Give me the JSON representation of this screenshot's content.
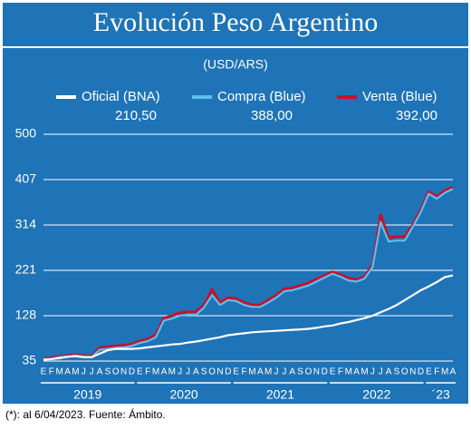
{
  "chart_data": {
    "type": "line",
    "title": "Evolución Peso Argentino",
    "subtitle": "(USD/ARS)",
    "footnote": "(*): al  6/04/2023. Fuente: Ámbito.",
    "categories": [
      "E",
      "F",
      "M",
      "A",
      "M",
      "J",
      "J",
      "A",
      "S",
      "O",
      "N",
      "D",
      "E",
      "F",
      "M",
      "A",
      "M",
      "J",
      "J",
      "A",
      "S",
      "O",
      "N",
      "D",
      "E",
      "F",
      "M",
      "A",
      "M",
      "J",
      "J",
      "A",
      "S",
      "O",
      "N",
      "D",
      "E",
      "F",
      "M",
      "A",
      "M",
      "J",
      "J",
      "A",
      "S",
      "O",
      "N",
      "D",
      "E",
      "F",
      "M",
      "A"
    ],
    "years": [
      "2019",
      "2020",
      "2021",
      "2022",
      "´23"
    ],
    "ylim": [
      35,
      500
    ],
    "yticks": [
      35,
      128,
      221,
      314,
      407,
      500
    ],
    "grid": true,
    "series": [
      {
        "name": "Venta (Blue)",
        "color": "#c8102e",
        "legend_value": {
          "value": 392,
          "label": "392,00"
        },
        "values": [
          40,
          41,
          45,
          46,
          48,
          46,
          45,
          62,
          64,
          66,
          67,
          70,
          76,
          80,
          89,
          123,
          128,
          134,
          136,
          136,
          150,
          182,
          155,
          165,
          163,
          155,
          150,
          150,
          160,
          170,
          183,
          185,
          190,
          195,
          203,
          210,
          218,
          212,
          205,
          202,
          208,
          232,
          335,
          288,
          290,
          290,
          314,
          345,
          382,
          372,
          384,
          392
        ]
      },
      {
        "name": "Compra (Blue)",
        "color": "#5bc0eb",
        "legend_value": {
          "value": 388,
          "label": "388,00"
        },
        "values": [
          38,
          39,
          43,
          44,
          46,
          44,
          43,
          58,
          60,
          62,
          63,
          66,
          72,
          76,
          84,
          118,
          122,
          128,
          130,
          130,
          145,
          170,
          150,
          160,
          158,
          150,
          146,
          146,
          155,
          165,
          178,
          180,
          185,
          190,
          198,
          206,
          214,
          208,
          200,
          198,
          204,
          228,
          320,
          280,
          282,
          282,
          310,
          340,
          378,
          368,
          380,
          388
        ]
      },
      {
        "name": "Oficial (BNA)",
        "color": "#ffffff",
        "legend_value": {
          "value": 210.5,
          "label": "210,50"
        },
        "values": [
          38,
          39,
          41,
          44,
          45,
          43,
          43,
          50,
          57,
          60,
          60,
          60,
          61,
          63,
          65,
          67,
          69,
          70,
          73,
          75,
          78,
          81,
          84,
          88,
          90,
          92,
          94,
          95,
          96,
          97,
          98,
          99,
          100,
          101,
          103,
          106,
          108,
          112,
          115,
          119,
          123,
          128,
          135,
          142,
          150,
          160,
          170,
          180,
          188,
          197,
          207,
          210.5
        ]
      }
    ]
  }
}
